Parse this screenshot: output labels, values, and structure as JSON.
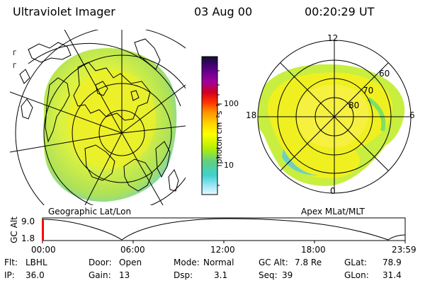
{
  "header": {
    "instrument": "Ultraviolet Imager",
    "date": "03 Aug 00",
    "time": "00:20:29 UT"
  },
  "geo_panel": {
    "label": "Geographic Lat/Lon"
  },
  "polar_panel": {
    "label": "Apex MLat/MLT",
    "mlt_labels": [
      "12",
      "18",
      "6",
      "0"
    ],
    "lat_labels": [
      "60",
      "70",
      "80"
    ]
  },
  "colorbar": {
    "unit_label": "photon cm⁻²s⁻¹",
    "ticks": [
      "100",
      "10"
    ],
    "colors_top_to_bottom": [
      "#101030",
      "#300050",
      "#600080",
      "#9000a0",
      "#c00030",
      "#ff0000",
      "#ff6000",
      "#ffa000",
      "#ffd000",
      "#ffff00",
      "#c0ff00",
      "#80e060",
      "#40d0c0",
      "#80e8f0",
      "#c0f0ff",
      "#e0f8ff"
    ]
  },
  "timeline": {
    "axis_label": "GC Alt",
    "y_ticks": [
      "9.0",
      "1.8"
    ],
    "x_ticks": [
      "00:00",
      "06:00",
      "12:00",
      "18:00",
      "23:59"
    ],
    "current_time_marker": "00:20"
  },
  "footer": {
    "rows": [
      [
        {
          "label": "Flt:",
          "value": "LBHL"
        },
        {
          "label": "Door:",
          "value": "Open"
        },
        {
          "label": "Mode:",
          "value": "Normal"
        },
        {
          "label": "GC Alt:",
          "value": "7.8 Re"
        },
        {
          "label": "GLat:",
          "value": "78.9"
        }
      ],
      [
        {
          "label": "IP:",
          "value": "36.0"
        },
        {
          "label": "Gain:",
          "value": "13"
        },
        {
          "label": "Dsp:",
          "value": "3.1"
        },
        {
          "label": "Seq:",
          "value": "39"
        },
        {
          "label": "GLon:",
          "value": "31.4"
        }
      ]
    ]
  },
  "colors": {
    "aurora_main": "#c8ee40",
    "aurora_bright": "#f0f020",
    "aurora_edge": "#70d0c0",
    "line": "#000000"
  }
}
